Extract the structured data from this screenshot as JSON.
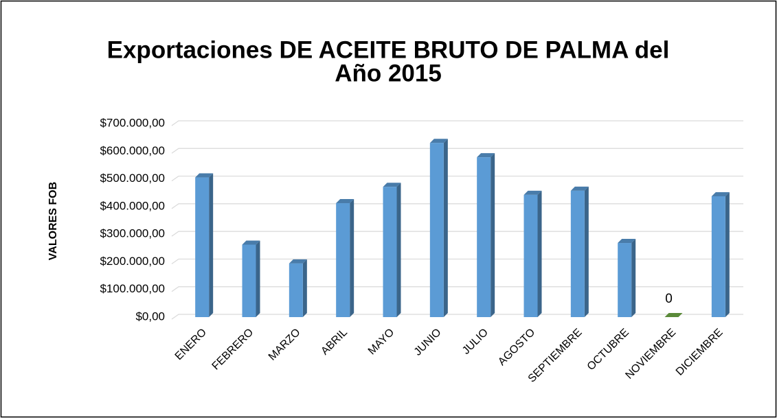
{
  "chart_data": {
    "type": "bar3d",
    "title": "Exportaciones DE ACEITE BRUTO DE PALMA del",
    "subtitle": "Año 2015",
    "y_label": "VALORES FOB",
    "categories": [
      "ENERO",
      "FEBRERO",
      "MARZO",
      "ABRIL",
      "MAYO",
      "JUNIO",
      "JULIO",
      "AGOSTO",
      "SEPTIEMBRE",
      "OCTUBRE",
      "NOVIEMBRE",
      "DICIEMBRE"
    ],
    "values": [
      505000,
      262000,
      194000,
      412000,
      471000,
      630000,
      578000,
      442000,
      457000,
      268000,
      0,
      437000
    ],
    "value_labels": [
      null,
      null,
      null,
      null,
      null,
      null,
      null,
      null,
      null,
      null,
      "0",
      null
    ],
    "colors": [
      "#5b9bd5",
      "#5b9bd5",
      "#5b9bd5",
      "#5b9bd5",
      "#5b9bd5",
      "#5b9bd5",
      "#5b9bd5",
      "#5b9bd5",
      "#5b9bd5",
      "#5b9bd5",
      "#70ad47",
      "#5b9bd5"
    ],
    "ylim": [
      0,
      700000
    ],
    "yticks": [
      {
        "value": 0,
        "label": "$0,00"
      },
      {
        "value": 100000,
        "label": "$100.000,00"
      },
      {
        "value": 200000,
        "label": "$200.000,00"
      },
      {
        "value": 300000,
        "label": "$300.000,00"
      },
      {
        "value": 400000,
        "label": "$400.000,00"
      },
      {
        "value": 500000,
        "label": "$500.000,00"
      },
      {
        "value": 600000,
        "label": "$600.000,00"
      },
      {
        "value": 700000,
        "label": "$700.000,00"
      }
    ],
    "grid": true
  }
}
